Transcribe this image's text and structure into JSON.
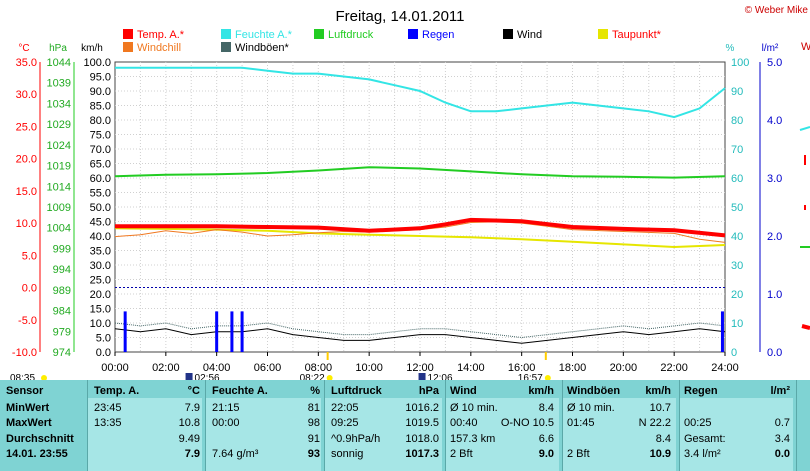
{
  "title": "Freitag, 14.01.2011",
  "copyright": "© Weber Mike",
  "legend": [
    {
      "label": "Temp. A.*",
      "color": "#ff0000"
    },
    {
      "label": "Feuchte A.*",
      "color": "#33e5e5"
    },
    {
      "label": "Luftdruck",
      "color": "#22cc22"
    },
    {
      "label": "Regen",
      "color": "#0000ff"
    },
    {
      "label": "Wind",
      "color": "#000000"
    },
    {
      "label": "Taupunkt*",
      "color": "#e6e600"
    },
    {
      "label": "Windchill",
      "color": "#f07820"
    },
    {
      "label": "Windböen*",
      "color": "#446666"
    }
  ],
  "axis_units": {
    "temp": "°C",
    "pressure": "hPa",
    "wind": "km/h",
    "humidity": "%",
    "rain": "l/m²"
  },
  "chart_data": {
    "type": "line",
    "x_ticks": [
      "00:00",
      "02:00",
      "04:00",
      "06:00",
      "08:00",
      "10:00",
      "12:00",
      "14:00",
      "16:00",
      "18:00",
      "20:00",
      "22:00",
      "24:00"
    ],
    "axes": {
      "temp": {
        "ticks": [
          "35.0",
          "30.0",
          "25.0",
          "20.0",
          "15.0",
          "10.0",
          "5.0",
          "0.0",
          "-5.0",
          "-10.0"
        ]
      },
      "pressure": {
        "ticks": [
          "1044",
          "1039",
          "1034",
          "1029",
          "1024",
          "1019",
          "1014",
          "1009",
          "1004",
          "999",
          "994",
          "989",
          "984",
          "979",
          "974"
        ]
      },
      "wind": {
        "ticks": [
          "100.0",
          "95.0",
          "90.0",
          "85.0",
          "80.0",
          "75.0",
          "70.0",
          "65.0",
          "60.0",
          "55.0",
          "50.0",
          "45.0",
          "40.0",
          "35.0",
          "30.0",
          "25.0",
          "20.0",
          "15.0",
          "10.0",
          "5.0",
          "0.0"
        ]
      },
      "humidity": {
        "ticks": [
          "100",
          "90",
          "80",
          "70",
          "60",
          "50",
          "40",
          "30",
          "20",
          "10",
          "0"
        ]
      },
      "rain": {
        "ticks": [
          "5.0",
          "4.0",
          "3.0",
          "2.0",
          "1.0",
          "0.0"
        ]
      }
    },
    "series": [
      {
        "name": "Feuchte A.*",
        "axis": "humidity",
        "color": "#33e5e5",
        "x": [
          0,
          1,
          2,
          3,
          4,
          5,
          6,
          7,
          8,
          9,
          10,
          11,
          12,
          13,
          14,
          15,
          16,
          17,
          18,
          19,
          20,
          21,
          22,
          23,
          24
        ],
        "y": [
          98,
          98,
          98,
          98,
          98,
          98,
          97,
          96,
          96,
          95,
          94,
          92,
          90,
          86,
          83,
          83,
          84,
          85,
          86,
          85,
          84,
          83,
          81,
          84,
          91
        ]
      },
      {
        "name": "Luftdruck",
        "axis": "pressure",
        "color": "#22cc22",
        "x": [
          0,
          2,
          4,
          6,
          8,
          10,
          12,
          14,
          16,
          18,
          20,
          22,
          24
        ],
        "y": [
          1016.4,
          1016.8,
          1016.9,
          1017.2,
          1017.8,
          1018.6,
          1018.3,
          1017.6,
          1016.9,
          1016.4,
          1016.3,
          1016.1,
          1016.4
        ]
      },
      {
        "name": "Temp. A.*",
        "axis": "temp",
        "color": "#ff0000",
        "x": [
          0,
          2,
          4,
          6,
          8,
          10,
          12,
          13,
          14,
          16,
          18,
          20,
          22,
          24
        ],
        "y": [
          9.5,
          9.5,
          9.5,
          9.4,
          9.3,
          8.8,
          9.2,
          9.8,
          10.5,
          10.3,
          9.4,
          9.1,
          8.9,
          8.1
        ]
      },
      {
        "name": "Taupunkt*",
        "axis": "temp",
        "color": "#e6e600",
        "x": [
          0,
          2,
          4,
          6,
          8,
          10,
          12,
          14,
          16,
          18,
          20,
          22,
          24
        ],
        "y": [
          9.2,
          9.1,
          9.0,
          8.8,
          8.4,
          8.2,
          8.0,
          7.8,
          7.5,
          7.1,
          6.7,
          6.3,
          6.6
        ]
      },
      {
        "name": "Windchill",
        "axis": "temp",
        "color": "#f07820",
        "x": [
          0,
          1,
          2,
          3,
          4,
          5,
          6,
          7,
          8,
          9,
          10,
          12,
          13,
          14,
          15,
          16,
          17,
          18,
          20,
          22,
          23,
          24
        ],
        "y": [
          7.9,
          8.2,
          8.8,
          8.4,
          9.0,
          8.6,
          8.0,
          8.2,
          8.5,
          8.7,
          8.6,
          9.0,
          9.4,
          10.1,
          10.2,
          10.0,
          9.5,
          9.0,
          8.7,
          8.4,
          7.5,
          7.0
        ]
      },
      {
        "name": "Wind",
        "axis": "wind",
        "color": "#000000",
        "x": [
          0,
          1,
          2,
          3,
          4,
          5,
          6,
          7,
          8,
          9,
          10,
          11,
          12,
          13,
          14,
          15,
          16,
          17,
          18,
          19,
          20,
          21,
          22,
          23,
          24
        ],
        "y": [
          8,
          7,
          8,
          6,
          7,
          7,
          8,
          6,
          5,
          4,
          4,
          5,
          6,
          6,
          5,
          4,
          3,
          4,
          5,
          6,
          7,
          6,
          7,
          8,
          7
        ]
      },
      {
        "name": "Windböen*",
        "axis": "wind",
        "color": "#446666",
        "x": [
          0,
          1,
          2,
          3,
          4,
          5,
          6,
          7,
          8,
          9,
          10,
          11,
          12,
          13,
          14,
          15,
          16,
          17,
          18,
          19,
          20,
          21,
          22,
          23,
          24
        ],
        "y": [
          10,
          9,
          10,
          8,
          9,
          9,
          10,
          8,
          7,
          6,
          6,
          7,
          8,
          8,
          7,
          6,
          5,
          6,
          7,
          8,
          9,
          8,
          9,
          10,
          9
        ]
      }
    ],
    "rain_bars": {
      "axis": "rain",
      "color": "#0000ff",
      "x": [
        0.4,
        4.0,
        4.6,
        5.0,
        23.9
      ],
      "y": [
        0.7,
        0.7,
        0.7,
        0.7,
        0.7
      ]
    },
    "reference_line": {
      "axis": "temp",
      "y": 0.0,
      "color": "#0000aa"
    },
    "markers": {
      "sunrise": "08:22",
      "sunset": "16:57",
      "moonrise": "02:56",
      "moonset": "12:06",
      "left_time": "08:35"
    }
  },
  "stats": {
    "row_labels": [
      "Sensor",
      "MinWert",
      "MaxWert",
      "Durchschnitt",
      "14.01. 23:55"
    ],
    "columns": [
      {
        "header": "Temp. A.",
        "unit": "°C",
        "left": [
          "23:45",
          "13:35",
          "",
          ""
        ],
        "right": [
          "7.9",
          "10.8",
          "9.49",
          "7.9"
        ]
      },
      {
        "header": "Feuchte A.",
        "unit": "%",
        "left": [
          "21:15",
          "00:00",
          "",
          "7.64 g/m³"
        ],
        "right": [
          "81",
          "98",
          "91",
          "93"
        ]
      },
      {
        "header": "Luftdruck",
        "unit": "hPa",
        "left": [
          "22:05",
          "09:25",
          "^0.9hPa/h",
          "sonnig"
        ],
        "right": [
          "1016.2",
          "1019.5",
          "1018.0",
          "1017.3"
        ]
      },
      {
        "header": "Wind",
        "unit": "km/h",
        "left": [
          "Ø 10 min.",
          "00:40",
          "157.3 km",
          "2 Bft"
        ],
        "right": [
          "8.4",
          "O-NO 10.5",
          "6.6",
          "9.0"
        ]
      },
      {
        "header": "Windböen",
        "unit": "km/h",
        "left": [
          "Ø 10 min.",
          "01:45",
          "",
          "2 Bft"
        ],
        "right": [
          "10.7",
          "N 22.2",
          "8.4",
          "10.9"
        ]
      },
      {
        "header": "Regen",
        "unit": "l/m²",
        "left": [
          "",
          "00:25",
          "Gesamt:",
          "3.4 l/m²"
        ],
        "right": [
          "",
          "0.7",
          "3.4",
          "0.0"
        ]
      }
    ]
  }
}
